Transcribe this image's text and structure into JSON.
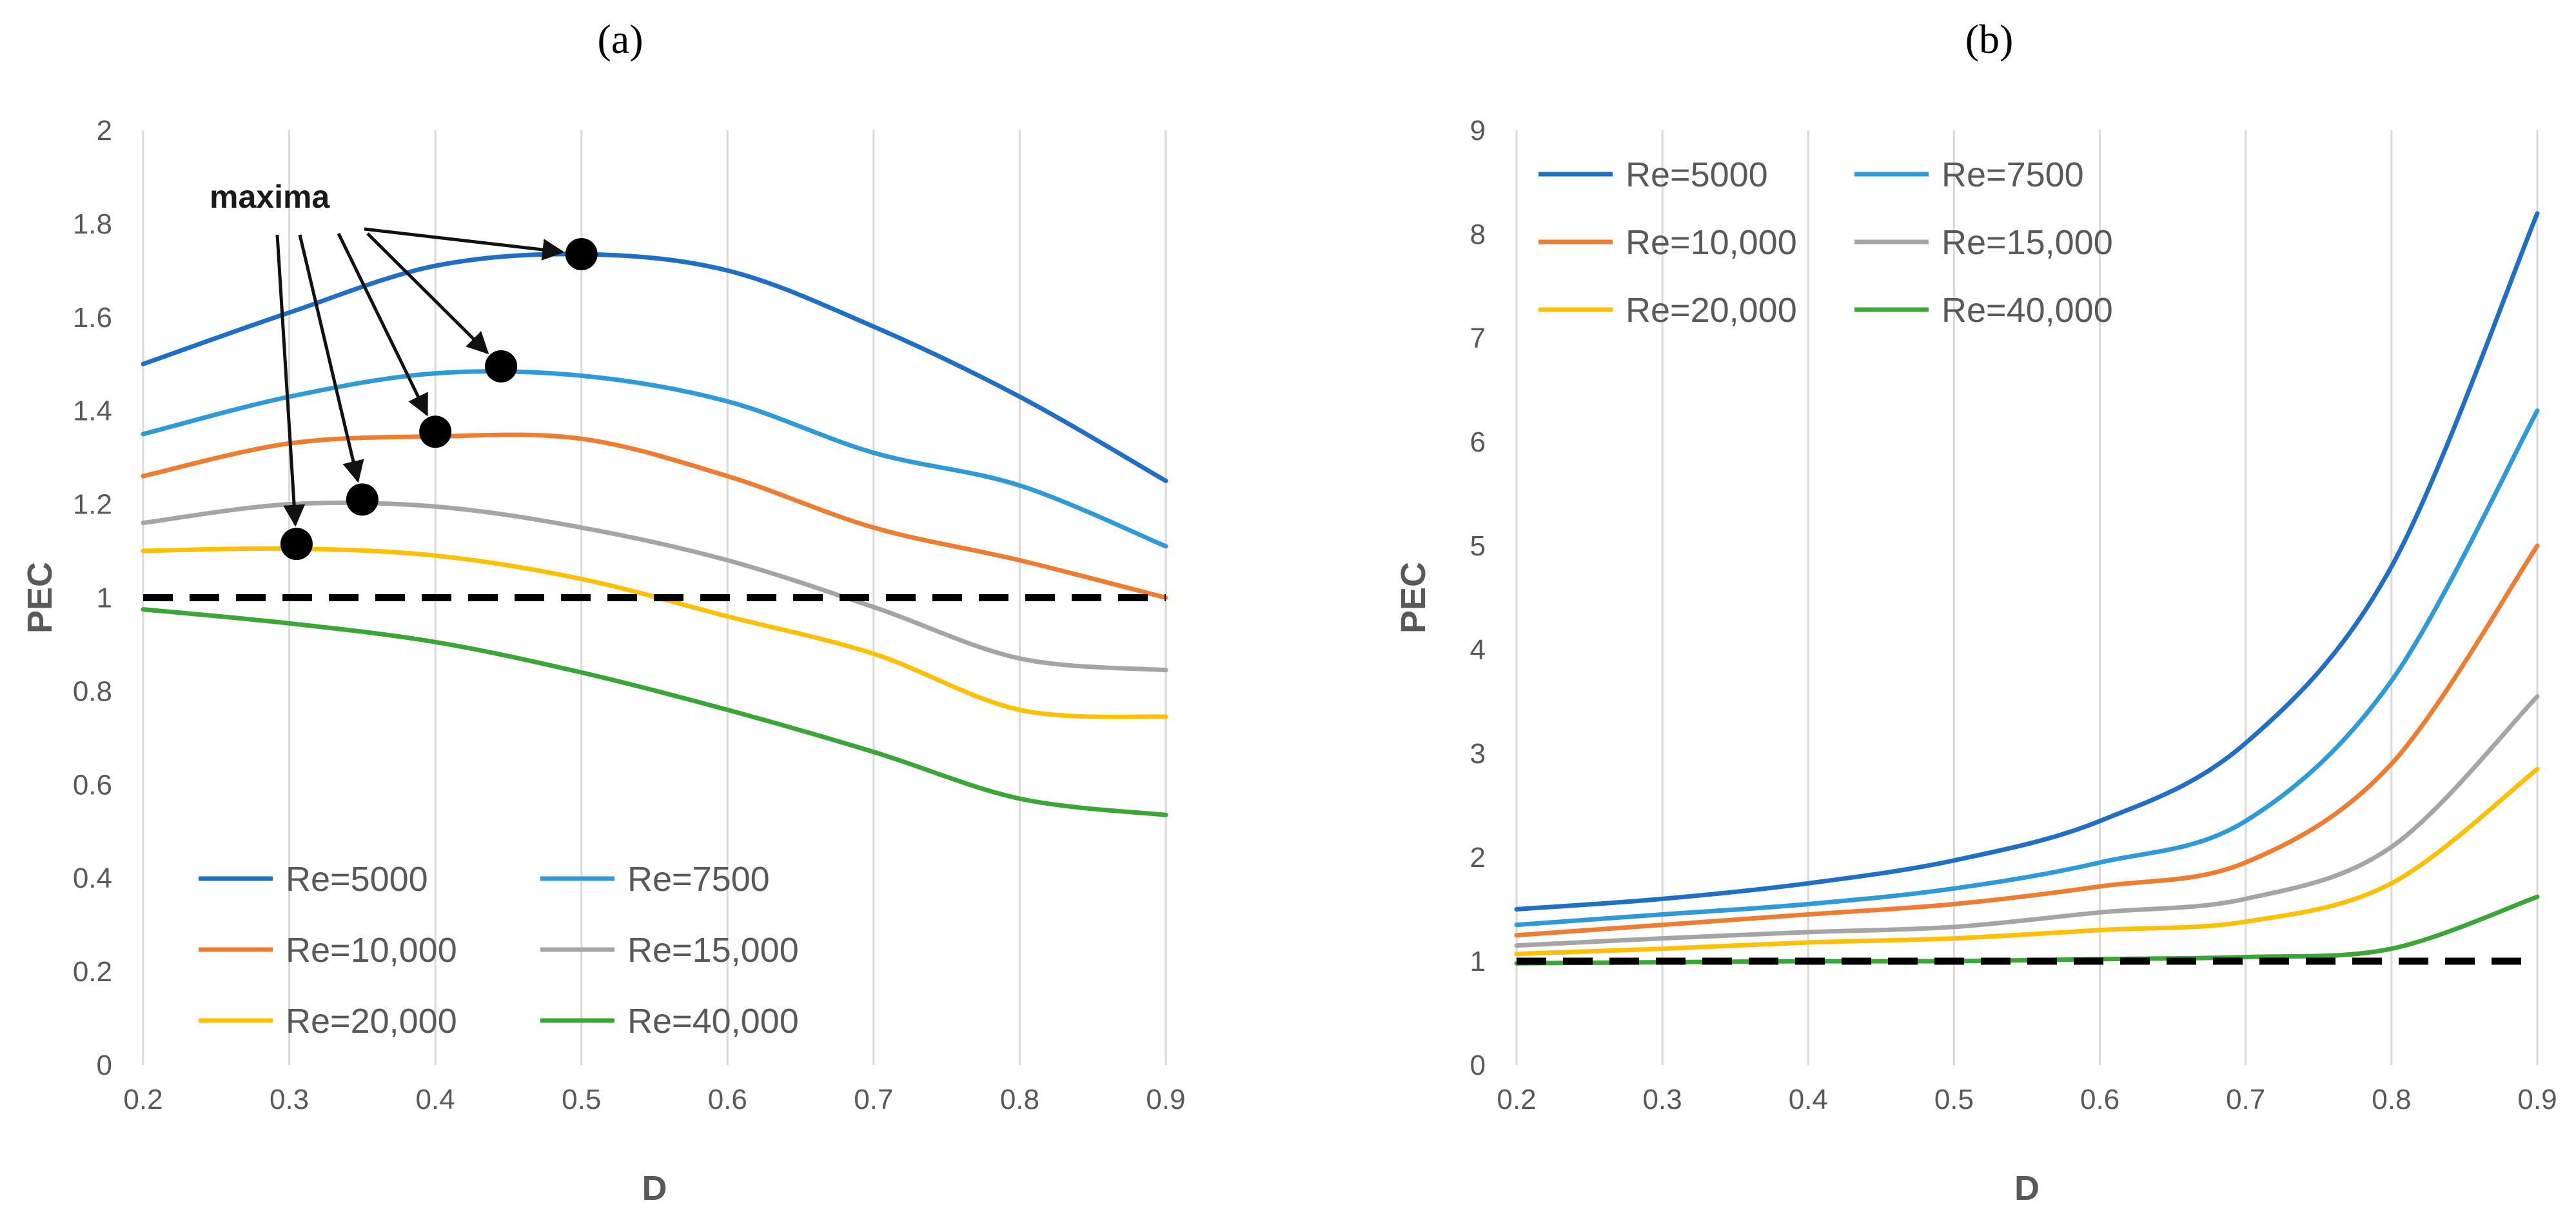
{
  "colors": {
    "Re=5000": "#1f6fc5",
    "Re=7500": "#2e9bd8",
    "Re=10,000": "#ee7d31",
    "Re=15,000": "#a5a5a5",
    "Re=20,000": "#ffc000",
    "Re=40,000": "#3aa636",
    "reference": "#000000",
    "grid": "#d9d9d9",
    "text": "#595959"
  },
  "chart_data": [
    {
      "id": "a",
      "panel_label": "(a)",
      "type": "line",
      "xlabel": "D",
      "ylabel": "PEC",
      "xlim": [
        0.2,
        0.9
      ],
      "ylim": [
        0,
        2
      ],
      "xticks": [
        0.2,
        0.3,
        0.4,
        0.5,
        0.6,
        0.7,
        0.8,
        0.9
      ],
      "xtick_labels": [
        "0.2",
        "0.3",
        "0.4",
        "0.5",
        "0.6",
        "0.7",
        "0.8",
        "0.9"
      ],
      "yticks": [
        0,
        0.2,
        0.4,
        0.6,
        0.8,
        1,
        1.2,
        1.4,
        1.6,
        1.8,
        2
      ],
      "ytick_labels": [
        "0",
        "0.2",
        "0.4",
        "0.6",
        "0.8",
        "1",
        "1.2",
        "1.4",
        "1.6",
        "1.8",
        "2"
      ],
      "grid": "vertical",
      "legend_position": "bottom-left",
      "x": [
        0.2,
        0.3,
        0.4,
        0.5,
        0.6,
        0.7,
        0.8,
        0.9
      ],
      "series": [
        {
          "name": "Re=5000",
          "values": [
            1.5,
            1.61,
            1.71,
            1.735,
            1.7,
            1.58,
            1.43,
            1.25
          ]
        },
        {
          "name": "Re=7500",
          "values": [
            1.35,
            1.43,
            1.48,
            1.475,
            1.42,
            1.31,
            1.24,
            1.11
          ]
        },
        {
          "name": "Re=10,000",
          "values": [
            1.26,
            1.33,
            1.345,
            1.34,
            1.26,
            1.15,
            1.08,
            1.0
          ]
        },
        {
          "name": "Re=15,000",
          "values": [
            1.16,
            1.2,
            1.195,
            1.15,
            1.08,
            0.98,
            0.87,
            0.845
          ]
        },
        {
          "name": "Re=20,000",
          "values": [
            1.1,
            1.105,
            1.09,
            1.04,
            0.96,
            0.88,
            0.76,
            0.745
          ]
        },
        {
          "name": "Re=40,000",
          "values": [
            0.975,
            0.945,
            0.905,
            0.84,
            0.76,
            0.67,
            0.57,
            0.535
          ]
        }
      ],
      "reference_line": {
        "y": 1,
        "style": "dashed"
      },
      "annotation": {
        "text": "maxima",
        "points": [
          {
            "x": 0.5,
            "y": 1.735
          },
          {
            "x": 0.445,
            "y": 1.495
          },
          {
            "x": 0.4,
            "y": 1.355
          },
          {
            "x": 0.35,
            "y": 1.21
          },
          {
            "x": 0.305,
            "y": 1.115
          }
        ]
      }
    },
    {
      "id": "b",
      "panel_label": "(b)",
      "type": "line",
      "xlabel": "D",
      "ylabel": "PEC",
      "xlim": [
        0.2,
        0.9
      ],
      "ylim": [
        0,
        9
      ],
      "xticks": [
        0.2,
        0.3,
        0.4,
        0.5,
        0.6,
        0.7,
        0.8,
        0.9
      ],
      "xtick_labels": [
        "0.2",
        "0.3",
        "0.4",
        "0.5",
        "0.6",
        "0.7",
        "0.8",
        "0.9"
      ],
      "yticks": [
        0,
        1,
        2,
        3,
        4,
        5,
        6,
        7,
        8,
        9
      ],
      "ytick_labels": [
        "0",
        "1",
        "2",
        "3",
        "4",
        "5",
        "6",
        "7",
        "8",
        "9"
      ],
      "grid": "vertical",
      "legend_position": "top-left",
      "x": [
        0.2,
        0.3,
        0.4,
        0.5,
        0.6,
        0.7,
        0.8,
        0.9
      ],
      "series": [
        {
          "name": "Re=5000",
          "values": [
            1.5,
            1.6,
            1.75,
            1.97,
            2.35,
            3.1,
            4.8,
            8.2
          ]
        },
        {
          "name": "Re=7500",
          "values": [
            1.35,
            1.45,
            1.55,
            1.7,
            1.95,
            2.35,
            3.7,
            6.3
          ]
        },
        {
          "name": "Re=10,000",
          "values": [
            1.25,
            1.35,
            1.45,
            1.55,
            1.72,
            1.95,
            2.9,
            5.0
          ]
        },
        {
          "name": "Re=15,000",
          "values": [
            1.15,
            1.22,
            1.28,
            1.33,
            1.47,
            1.6,
            2.1,
            3.55
          ]
        },
        {
          "name": "Re=20,000",
          "values": [
            1.07,
            1.12,
            1.18,
            1.22,
            1.3,
            1.38,
            1.75,
            2.85
          ]
        },
        {
          "name": "Re=40,000",
          "values": [
            0.98,
            0.99,
            1.0,
            1.0,
            1.02,
            1.04,
            1.12,
            1.62
          ]
        }
      ],
      "reference_line": {
        "y": 1,
        "style": "dashed"
      }
    }
  ]
}
